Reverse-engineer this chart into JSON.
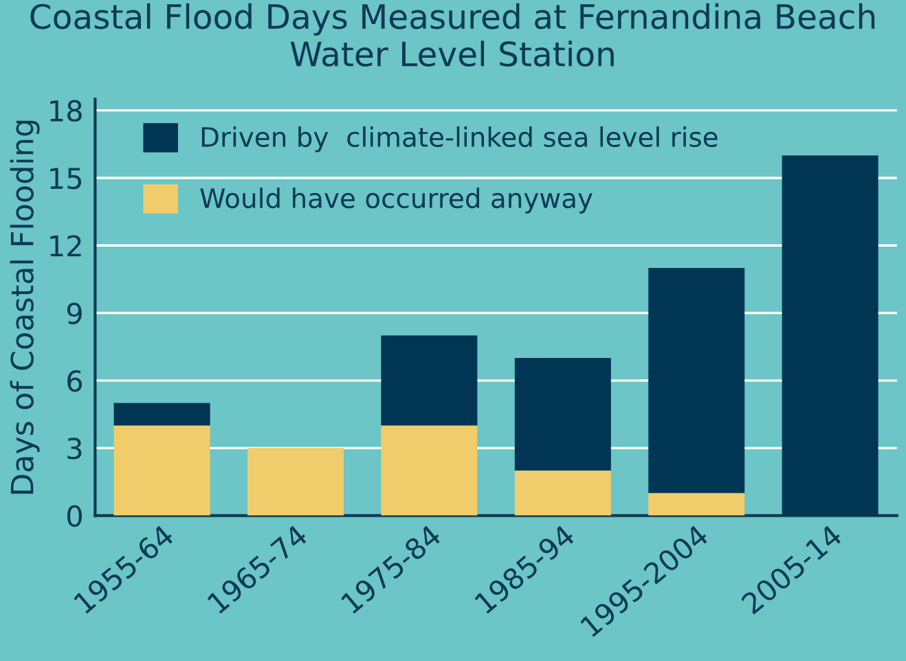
{
  "chart_data": {
    "type": "bar",
    "title": "Coastal Flood Days Measured at Fernandina Beach Water Level Station",
    "ylabel": "Days of Coastal Flooding",
    "categories": [
      "1955-64",
      "1965-74",
      "1975-84",
      "1985-94",
      "1995-2004",
      "2005-14"
    ],
    "stacked": true,
    "series": [
      {
        "name": "Would have occurred anyway",
        "color": "#f0cd6a",
        "values": [
          4,
          3,
          4,
          2,
          1,
          0
        ]
      },
      {
        "name": "Driven by  climate-linked sea level rise",
        "color": "#003554",
        "values": [
          1,
          0,
          4,
          5,
          10,
          16
        ]
      }
    ],
    "ylim": [
      0,
      18.5
    ],
    "yticks": [
      0,
      3,
      6,
      9,
      12,
      15,
      18
    ],
    "grid": "y",
    "legend": "top left"
  }
}
